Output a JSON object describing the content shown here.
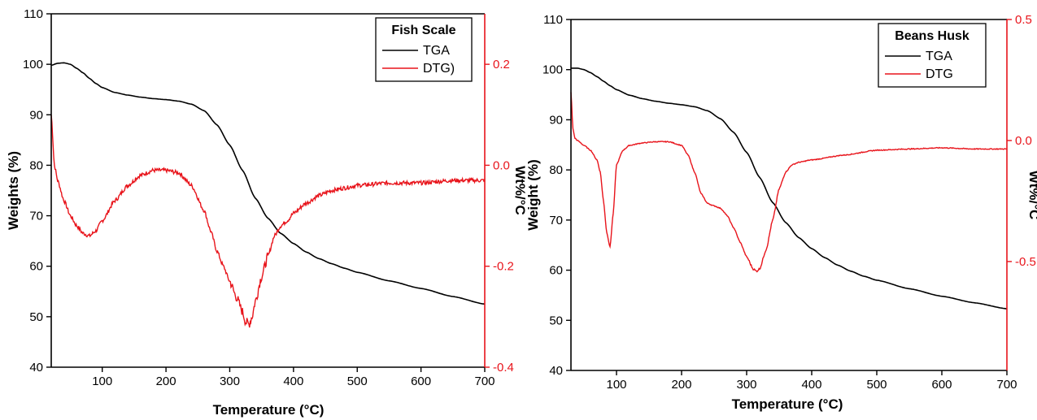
{
  "colors": {
    "tga": "#000000",
    "dtg": "#e8141b",
    "axis": "#000000",
    "right_axis": "#e8141b"
  },
  "chart_data": [
    {
      "type": "line",
      "legend_title": "Fish Scale",
      "legend_placement": "top-right",
      "grid": false,
      "xlabel": "Temperature (°C)",
      "ylabel": "Weights (%)",
      "y2label": "Wt%/°C",
      "xlim": [
        20,
        700
      ],
      "ylim": [
        40,
        110
      ],
      "y2lim": [
        -0.4,
        0.3
      ],
      "x_ticks": [
        "100",
        "200",
        "300",
        "400",
        "500",
        "600",
        "700"
      ],
      "y_ticks": [
        "40",
        "50",
        "60",
        "70",
        "80",
        "90",
        "100",
        "110"
      ],
      "y2_ticks": [
        "-0.4",
        "-0.2",
        "0.0",
        "0.2"
      ],
      "series": [
        {
          "name": "TGA",
          "axis": "left",
          "x": [
            20,
            30,
            40,
            50,
            60,
            70,
            80,
            90,
            100,
            120,
            140,
            160,
            180,
            200,
            220,
            240,
            260,
            280,
            300,
            320,
            340,
            360,
            380,
            400,
            420,
            440,
            460,
            480,
            500,
            550,
            600,
            650,
            700
          ],
          "y": [
            99.8,
            100.2,
            100.3,
            100.0,
            99.2,
            98.3,
            97.2,
            96.2,
            95.4,
            94.4,
            93.9,
            93.5,
            93.2,
            93.0,
            92.7,
            92.1,
            90.8,
            88.0,
            84.0,
            79.0,
            73.5,
            69.5,
            66.5,
            64.5,
            62.8,
            61.5,
            60.5,
            59.6,
            58.8,
            57.1,
            55.6,
            54.0,
            52.5
          ]
        },
        {
          "name": "DTG)",
          "axis": "right",
          "x": [
            20,
            25,
            30,
            40,
            50,
            60,
            70,
            80,
            90,
            100,
            120,
            140,
            160,
            180,
            200,
            220,
            240,
            260,
            270,
            280,
            290,
            300,
            310,
            320,
            325,
            330,
            335,
            340,
            350,
            360,
            370,
            380,
            390,
            400,
            420,
            440,
            460,
            480,
            500,
            550,
            600,
            650,
            700
          ],
          "y": [
            0.1,
            0.0,
            -0.03,
            -0.07,
            -0.1,
            -0.12,
            -0.135,
            -0.14,
            -0.13,
            -0.11,
            -0.07,
            -0.04,
            -0.02,
            -0.01,
            -0.01,
            -0.015,
            -0.04,
            -0.09,
            -0.13,
            -0.17,
            -0.2,
            -0.23,
            -0.26,
            -0.29,
            -0.31,
            -0.315,
            -0.3,
            -0.27,
            -0.22,
            -0.18,
            -0.14,
            -0.12,
            -0.11,
            -0.095,
            -0.075,
            -0.06,
            -0.05,
            -0.045,
            -0.04,
            -0.035,
            -0.035,
            -0.03,
            -0.03
          ]
        }
      ]
    },
    {
      "type": "line",
      "legend_title": "Beans Husk",
      "legend_placement": "top-right",
      "grid": false,
      "xlabel": "Temperature (°C)",
      "ylabel": "Weight (%)",
      "y2label": "Wt%/°C",
      "xlim": [
        30,
        700
      ],
      "ylim": [
        40,
        110
      ],
      "y2lim": [
        -0.95,
        0.5
      ],
      "x_ticks": [
        "100",
        "200",
        "300",
        "400",
        "500",
        "600",
        "700"
      ],
      "y_ticks": [
        "40",
        "50",
        "60",
        "70",
        "80",
        "90",
        "100",
        "110"
      ],
      "y2_ticks": [
        "-0.5",
        "0.0",
        "0.5"
      ],
      "series": [
        {
          "name": "TGA",
          "axis": "left",
          "x": [
            30,
            40,
            50,
            60,
            70,
            80,
            90,
            100,
            120,
            140,
            160,
            180,
            200,
            220,
            240,
            260,
            280,
            300,
            320,
            340,
            360,
            380,
            400,
            420,
            440,
            460,
            480,
            500,
            550,
            600,
            650,
            700
          ],
          "y": [
            100.3,
            100.3,
            100.0,
            99.4,
            98.6,
            97.7,
            96.8,
            96.0,
            94.9,
            94.2,
            93.7,
            93.3,
            93.0,
            92.6,
            91.8,
            90.2,
            87.5,
            83.5,
            78.5,
            73.5,
            69.5,
            66.5,
            64.3,
            62.5,
            61.0,
            59.8,
            58.8,
            58.0,
            56.3,
            54.8,
            53.5,
            52.3
          ]
        },
        {
          "name": "DTG",
          "axis": "right",
          "x": [
            30,
            33,
            36,
            40,
            50,
            60,
            70,
            75,
            80,
            85,
            90,
            95,
            100,
            110,
            120,
            140,
            160,
            180,
            200,
            210,
            220,
            230,
            240,
            250,
            260,
            270,
            280,
            290,
            300,
            310,
            315,
            320,
            330,
            340,
            350,
            360,
            370,
            380,
            400,
            450,
            500,
            550,
            600,
            650,
            700
          ],
          "y": [
            0.2,
            0.05,
            0.01,
            0.0,
            -0.02,
            -0.04,
            -0.08,
            -0.13,
            -0.25,
            -0.38,
            -0.44,
            -0.3,
            -0.1,
            -0.04,
            -0.02,
            -0.01,
            -0.005,
            -0.005,
            -0.02,
            -0.06,
            -0.13,
            -0.22,
            -0.26,
            -0.27,
            -0.28,
            -0.31,
            -0.36,
            -0.42,
            -0.48,
            -0.53,
            -0.54,
            -0.53,
            -0.45,
            -0.33,
            -0.2,
            -0.13,
            -0.1,
            -0.09,
            -0.08,
            -0.06,
            -0.04,
            -0.035,
            -0.03,
            -0.035,
            -0.035
          ]
        }
      ]
    }
  ]
}
